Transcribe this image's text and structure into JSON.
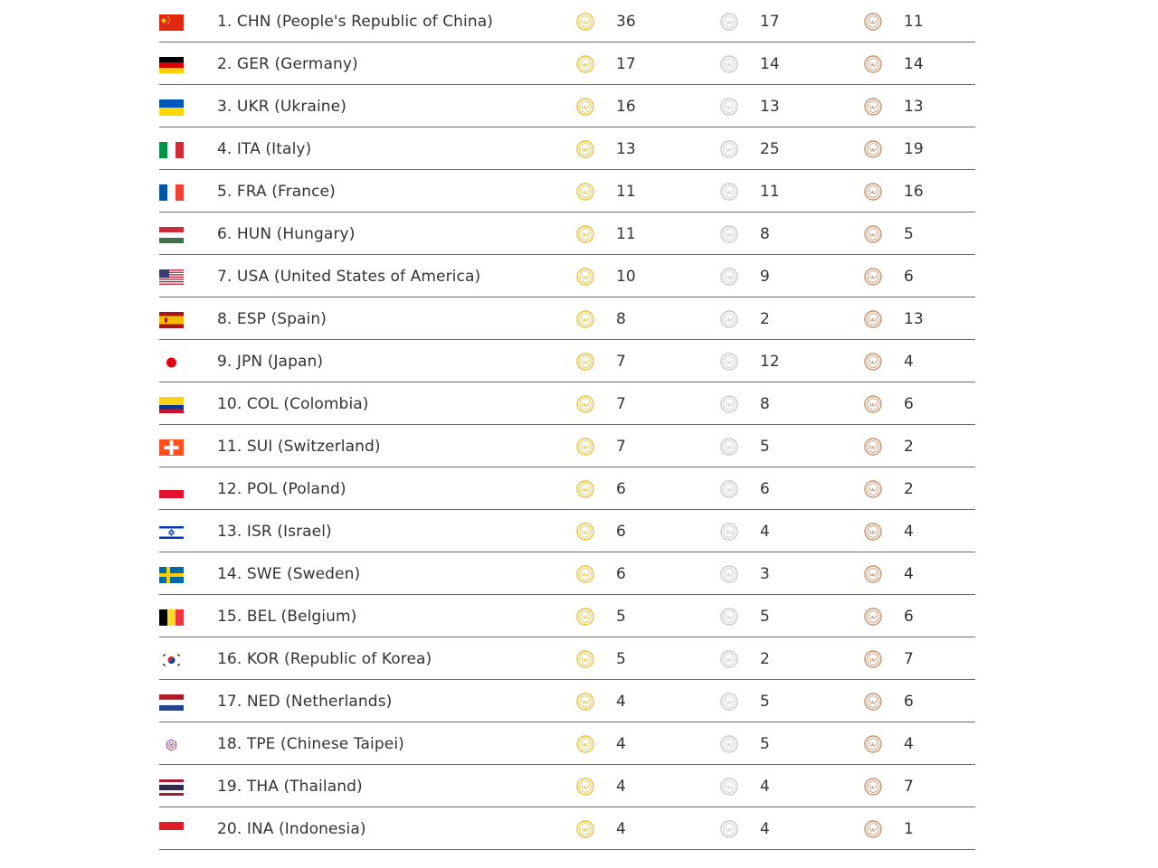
{
  "colors": {
    "gold": "#e8c23a",
    "silver": "#c9c9c9",
    "bronze": "#c8906a",
    "divider": "#6b6b6b"
  },
  "rows": [
    {
      "country": "1. CHN (People's Republic of China)",
      "flag": "flag-chn-icon",
      "gold": "36",
      "silver": "17",
      "bronze": "11"
    },
    {
      "country": "2. GER (Germany)",
      "flag": "flag-ger-icon",
      "gold": "17",
      "silver": "14",
      "bronze": "14"
    },
    {
      "country": "3. UKR (Ukraine)",
      "flag": "flag-ukr-icon",
      "gold": "16",
      "silver": "13",
      "bronze": "13"
    },
    {
      "country": "4. ITA (Italy)",
      "flag": "flag-ita-icon",
      "gold": "13",
      "silver": "25",
      "bronze": "19"
    },
    {
      "country": "5. FRA (France)",
      "flag": "flag-fra-icon",
      "gold": "11",
      "silver": "11",
      "bronze": "16"
    },
    {
      "country": "6. HUN (Hungary)",
      "flag": "flag-hun-icon",
      "gold": "11",
      "silver": "8",
      "bronze": "5"
    },
    {
      "country": "7. USA (United States of America)",
      "flag": "flag-usa-icon",
      "gold": "10",
      "silver": "9",
      "bronze": "6"
    },
    {
      "country": "8. ESP (Spain)",
      "flag": "flag-esp-icon",
      "gold": "8",
      "silver": "2",
      "bronze": "13"
    },
    {
      "country": "9. JPN (Japan)",
      "flag": "flag-jpn-icon",
      "gold": "7",
      "silver": "12",
      "bronze": "4"
    },
    {
      "country": "10. COL (Colombia)",
      "flag": "flag-col-icon",
      "gold": "7",
      "silver": "8",
      "bronze": "6"
    },
    {
      "country": "11. SUI (Switzerland)",
      "flag": "flag-sui-icon",
      "gold": "7",
      "silver": "5",
      "bronze": "2"
    },
    {
      "country": "12. POL (Poland)",
      "flag": "flag-pol-icon",
      "gold": "6",
      "silver": "6",
      "bronze": "2"
    },
    {
      "country": "13. ISR (Israel)",
      "flag": "flag-isr-icon",
      "gold": "6",
      "silver": "4",
      "bronze": "4"
    },
    {
      "country": "14. SWE (Sweden)",
      "flag": "flag-swe-icon",
      "gold": "6",
      "silver": "3",
      "bronze": "4"
    },
    {
      "country": "15. BEL (Belgium)",
      "flag": "flag-bel-icon",
      "gold": "5",
      "silver": "5",
      "bronze": "6"
    },
    {
      "country": "16. KOR (Republic of Korea)",
      "flag": "flag-kor-icon",
      "gold": "5",
      "silver": "2",
      "bronze": "7"
    },
    {
      "country": "17. NED (Netherlands)",
      "flag": "flag-ned-icon",
      "gold": "4",
      "silver": "5",
      "bronze": "6"
    },
    {
      "country": "18. TPE (Chinese Taipei)",
      "flag": "flag-tpe-icon",
      "gold": "4",
      "silver": "5",
      "bronze": "4"
    },
    {
      "country": "19. THA (Thailand)",
      "flag": "flag-tha-icon",
      "gold": "4",
      "silver": "4",
      "bronze": "7"
    },
    {
      "country": "20. INA (Indonesia)",
      "flag": "flag-ina-icon",
      "gold": "4",
      "silver": "4",
      "bronze": "1"
    }
  ]
}
